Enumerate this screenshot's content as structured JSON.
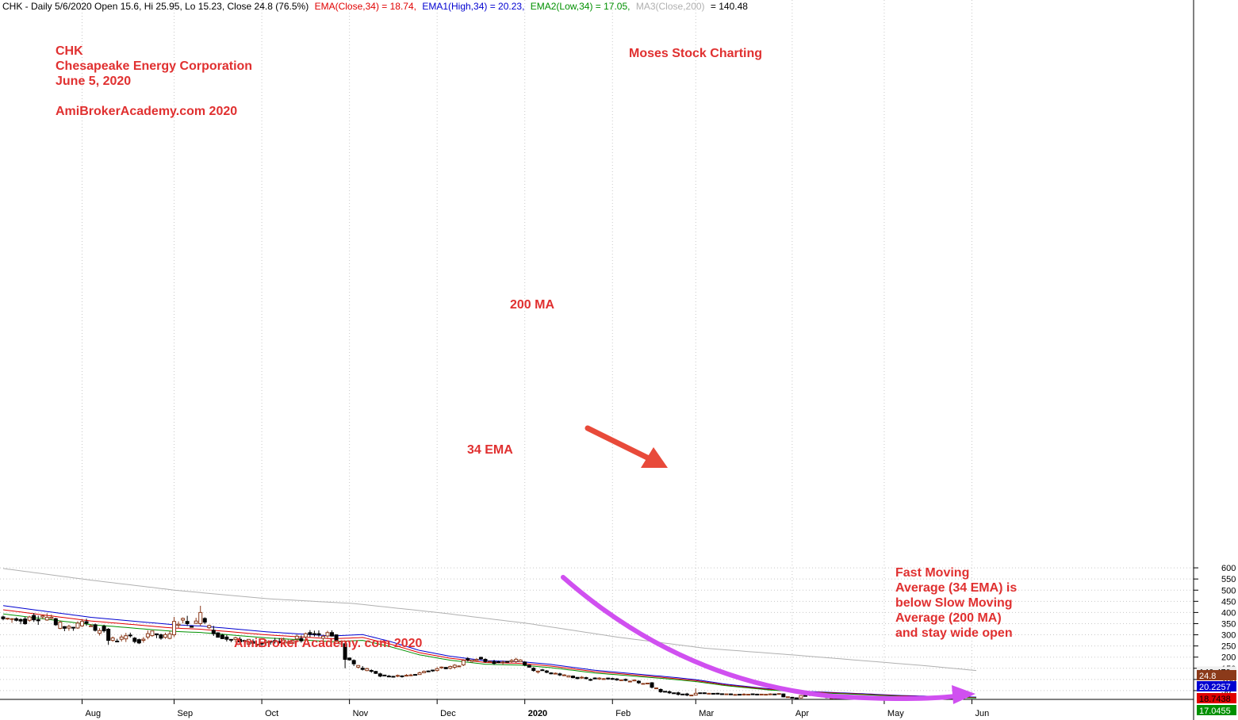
{
  "header": {
    "symbol_info": "CHK - Daily 5/6/2020 Open 15.6, Hi 25.95, Lo 15.23, Close 24.8 (76.5%)",
    "ema_close": "EMA(Close,34) = 18.74,",
    "ema_high": "EMA1(High,34) = 20.23,",
    "ema_low": "EMA2(Low,34) = 17.05,",
    "ma_close": "MA3(Close,200)",
    "ma_value": "= 140.48"
  },
  "annotations": {
    "ticker": "CHK",
    "company": "Chesapeake Energy Corporation",
    "date": "June 5, 2020",
    "watermark_top": "AmiBrokerAcademy.com  2020",
    "watermark_bottom": "AmiBroker Academy. com  2020",
    "site": "Moses Stock Charting",
    "ma_label": "200 MA",
    "ema_label": "34 EMA",
    "note_lines": [
      "Fast Moving",
      "Average (34 EMA) is",
      "below Slow Moving",
      "Average (200 MA)",
      "and stay wide open"
    ]
  },
  "colors": {
    "ema_close": "#e00000",
    "ema_high": "#0000d0",
    "ema_low": "#009000",
    "ma200": "#b0b0b0",
    "up_candle": "#8b3a1a",
    "down_candle": "#000000",
    "annotation": "#e03030",
    "arrow_red": "#e84a3a",
    "arrow_purple": "#d050f0",
    "grid": "#c8c8c8"
  },
  "chart_data": {
    "type": "candlestick",
    "symbol": "CHK",
    "ylim": [
      0,
      625
    ],
    "yticks": [
      50,
      100,
      150,
      200,
      250,
      300,
      350,
      400,
      450,
      500,
      550,
      600
    ],
    "x_labels": [
      {
        "label": "Aug",
        "day": 18
      },
      {
        "label": "Sep",
        "day": 39
      },
      {
        "label": "Oct",
        "day": 59
      },
      {
        "label": "Nov",
        "day": 79
      },
      {
        "label": "Dec",
        "day": 99
      },
      {
        "label": "2020",
        "day": 119
      },
      {
        "label": "Feb",
        "day": 139
      },
      {
        "label": "Mar",
        "day": 158
      },
      {
        "label": "Apr",
        "day": 180
      },
      {
        "label": "May",
        "day": 201
      },
      {
        "label": "Jun",
        "day": 221
      }
    ],
    "total_days": 223,
    "last_values": {
      "close": "24.8",
      "ema_high": "20.2257",
      "ema_close": "18.7438",
      "ema_low": "17.0455",
      "ma200": "140.479"
    },
    "ema_close_points": [
      [
        0,
        412
      ],
      [
        20,
        362
      ],
      [
        39,
        330
      ],
      [
        45,
        325
      ],
      [
        60,
        300
      ],
      [
        75,
        282
      ],
      [
        82,
        288
      ],
      [
        88,
        260
      ],
      [
        95,
        220
      ],
      [
        102,
        195
      ],
      [
        110,
        176
      ],
      [
        118,
        172
      ],
      [
        125,
        160
      ],
      [
        135,
        135
      ],
      [
        150,
        110
      ],
      [
        158,
        95
      ],
      [
        165,
        75
      ],
      [
        175,
        55
      ],
      [
        185,
        43
      ],
      [
        195,
        35
      ],
      [
        205,
        26
      ],
      [
        215,
        21
      ],
      [
        222,
        19
      ]
    ],
    "ma200_points": [
      [
        0,
        597
      ],
      [
        20,
        545
      ],
      [
        40,
        498
      ],
      [
        60,
        462
      ],
      [
        80,
        440
      ],
      [
        100,
        398
      ],
      [
        120,
        350
      ],
      [
        140,
        290
      ],
      [
        160,
        240
      ],
      [
        180,
        210
      ],
      [
        200,
        178
      ],
      [
        210,
        162
      ],
      [
        222,
        140
      ]
    ],
    "ohlc_anchors": [
      [
        0,
        380,
        386,
        365,
        372
      ],
      [
        3,
        372,
        378,
        360,
        365
      ],
      [
        6,
        365,
        385,
        358,
        380
      ],
      [
        9,
        380,
        390,
        370,
        385
      ],
      [
        12,
        372,
        376,
        340,
        345
      ],
      [
        15,
        330,
        345,
        318,
        338
      ],
      [
        18,
        340,
        370,
        335,
        360
      ],
      [
        21,
        345,
        350,
        315,
        320
      ],
      [
        24,
        325,
        330,
        255,
        275
      ],
      [
        27,
        280,
        300,
        270,
        290
      ],
      [
        30,
        285,
        290,
        262,
        270
      ],
      [
        33,
        290,
        320,
        280,
        305
      ],
      [
        36,
        300,
        305,
        278,
        285
      ],
      [
        39,
        300,
        380,
        290,
        360
      ],
      [
        42,
        360,
        385,
        340,
        350
      ],
      [
        45,
        350,
        430,
        340,
        400
      ],
      [
        48,
        320,
        340,
        295,
        305
      ],
      [
        51,
        290,
        300,
        270,
        280
      ],
      [
        54,
        280,
        290,
        262,
        268
      ],
      [
        57,
        270,
        280,
        258,
        262
      ],
      [
        60,
        265,
        278,
        255,
        270
      ],
      [
        63,
        270,
        285,
        260,
        265
      ],
      [
        66,
        262,
        280,
        255,
        275
      ],
      [
        69,
        290,
        310,
        280,
        305
      ],
      [
        72,
        305,
        320,
        290,
        300
      ],
      [
        74,
        295,
        318,
        285,
        310
      ],
      [
        76,
        300,
        302,
        270,
        275
      ],
      [
        78,
        260,
        265,
        150,
        190
      ],
      [
        80,
        185,
        190,
        160,
        170
      ],
      [
        82,
        150,
        160,
        140,
        145
      ],
      [
        84,
        140,
        145,
        130,
        138
      ],
      [
        86,
        125,
        130,
        110,
        115
      ],
      [
        88,
        115,
        120,
        110,
        113
      ],
      [
        90,
        115,
        122,
        110,
        118
      ],
      [
        93,
        118,
        125,
        115,
        120
      ],
      [
        96,
        130,
        140,
        128,
        136
      ],
      [
        99,
        140,
        155,
        135,
        148
      ],
      [
        102,
        150,
        162,
        145,
        158
      ],
      [
        105,
        165,
        190,
        160,
        185
      ],
      [
        108,
        185,
        195,
        180,
        190
      ],
      [
        110,
        190,
        195,
        175,
        180
      ],
      [
        112,
        180,
        188,
        165,
        172
      ],
      [
        114,
        175,
        185,
        165,
        178
      ],
      [
        116,
        180,
        192,
        172,
        185
      ],
      [
        119,
        178,
        182,
        160,
        165
      ],
      [
        121,
        150,
        155,
        135,
        140
      ],
      [
        124,
        138,
        142,
        128,
        132
      ],
      [
        127,
        125,
        130,
        115,
        120
      ],
      [
        130,
        115,
        118,
        105,
        108
      ],
      [
        133,
        108,
        112,
        100,
        104
      ],
      [
        136,
        102,
        110,
        98,
        106
      ],
      [
        139,
        104,
        108,
        98,
        102
      ],
      [
        142,
        100,
        104,
        92,
        96
      ],
      [
        145,
        92,
        96,
        80,
        85
      ],
      [
        148,
        85,
        88,
        60,
        65
      ],
      [
        150,
        55,
        60,
        40,
        45
      ],
      [
        152,
        45,
        50,
        35,
        40
      ],
      [
        154,
        40,
        45,
        28,
        33
      ],
      [
        156,
        35,
        40,
        25,
        30
      ],
      [
        158,
        30,
        60,
        28,
        38
      ],
      [
        160,
        40,
        42,
        35,
        38
      ],
      [
        163,
        38,
        40,
        33,
        35
      ],
      [
        166,
        35,
        37,
        30,
        32
      ],
      [
        169,
        32,
        38,
        28,
        34
      ],
      [
        172,
        34,
        36,
        30,
        33
      ],
      [
        175,
        33,
        38,
        30,
        35
      ],
      [
        178,
        35,
        37,
        20,
        22
      ],
      [
        180,
        20,
        22,
        15,
        17
      ],
      [
        182,
        17,
        30,
        15,
        28
      ],
      [
        184,
        30,
        38,
        25,
        35
      ],
      [
        186,
        35,
        38,
        22,
        25
      ],
      [
        188,
        22,
        24,
        17,
        18
      ],
      [
        191,
        17,
        19,
        15,
        16
      ],
      [
        194,
        15,
        16,
        13,
        14
      ],
      [
        197,
        14,
        15,
        11,
        12
      ],
      [
        200,
        12,
        14,
        10,
        13
      ],
      [
        203,
        13,
        15,
        11,
        14
      ],
      [
        206,
        13,
        16,
        12,
        15
      ],
      [
        209,
        14,
        16,
        13,
        15
      ],
      [
        212,
        15,
        17,
        14,
        16
      ],
      [
        214,
        16,
        18,
        14,
        15
      ],
      [
        216,
        15,
        26,
        15,
        25
      ]
    ]
  }
}
